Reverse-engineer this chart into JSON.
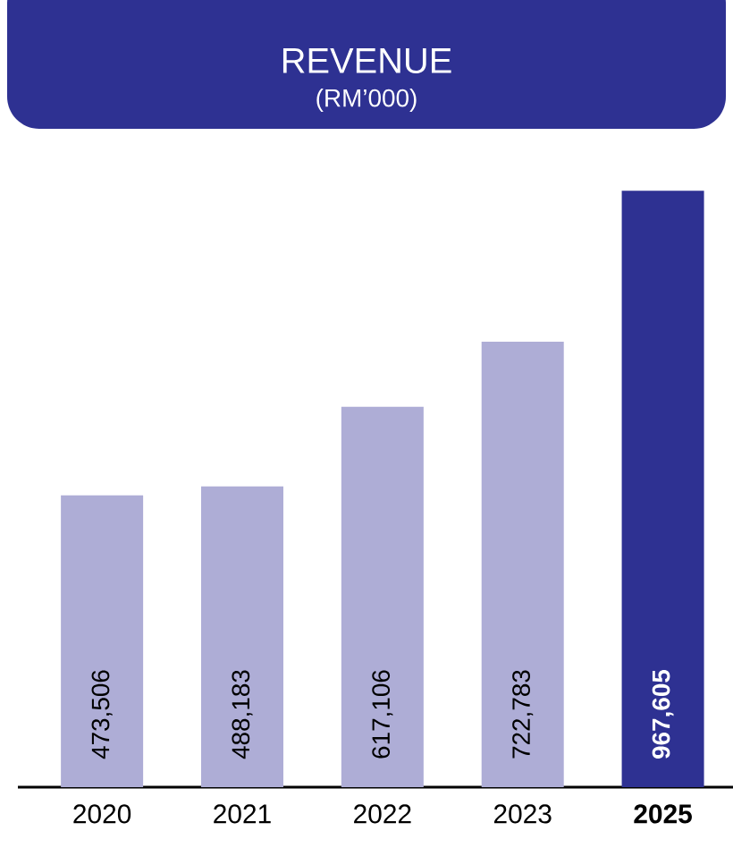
{
  "chart_data": {
    "type": "bar",
    "title": "REVENUE",
    "subtitle": "(RM’000)",
    "categories": [
      "2020",
      "2021",
      "2022",
      "2023",
      "**2025**"
    ],
    "values": [
      473506,
      488183,
      617106,
      722783,
      967605
    ],
    "colors": [
      "#aeadd6",
      "#aeadd6",
      "#aeadd6",
      "#aeadd6",
      "#2e3192"
    ],
    "value_labels": [
      "473,506",
      "488,183",
      "617,106",
      "722,783",
      "**967,605**"
    ]
  }
}
